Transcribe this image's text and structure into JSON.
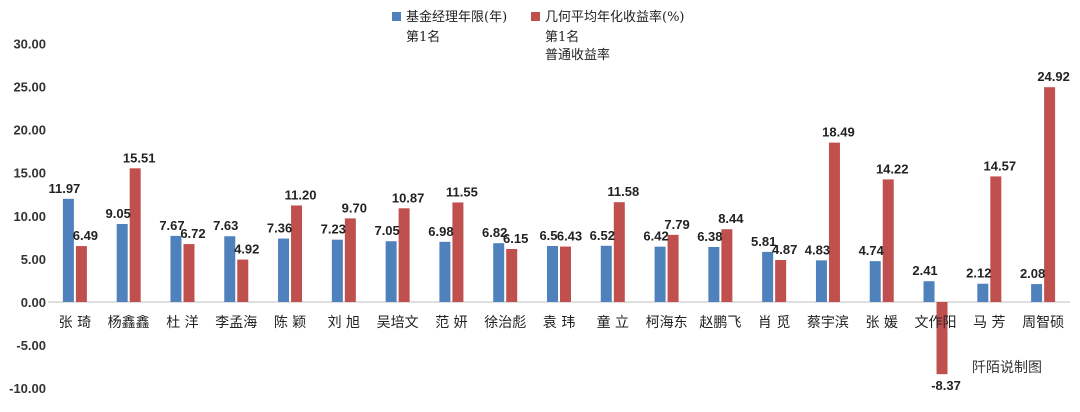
{
  "chart_data": {
    "type": "bar",
    "categories": [
      "张 琦",
      "杨鑫鑫",
      "杜 洋",
      "李孟海",
      "陈 颖",
      "刘 旭",
      "吴培文",
      "范 妍",
      "徐治彪",
      "袁 玮",
      "童 立",
      "柯海东",
      "赵鹏飞",
      "肖 觅",
      "蔡宇滨",
      "张 媛",
      "文作阳",
      "马 芳",
      "周智硕"
    ],
    "series": [
      {
        "name": "基金经理年限(年)",
        "color": "#4F81BD",
        "values": [
          11.97,
          9.05,
          7.67,
          7.63,
          7.36,
          7.23,
          7.05,
          6.98,
          6.82,
          6.5,
          6.52,
          6.42,
          6.38,
          5.81,
          4.83,
          4.74,
          2.41,
          2.12,
          2.08
        ],
        "labels": [
          "11.97",
          "9.05",
          "7.67",
          "7.63",
          "7.36",
          "7.23",
          "7.05",
          "6.98",
          "6.82",
          "6.5",
          "6.52",
          "6.42",
          "6.38",
          "5.81",
          "4.83",
          "4.74",
          "2.41",
          "2.12",
          "2.08"
        ]
      },
      {
        "name": "几何平均年化收益率(%)",
        "color": "#C0504D",
        "values": [
          6.49,
          15.51,
          6.72,
          4.92,
          11.2,
          9.7,
          10.87,
          11.55,
          6.15,
          6.43,
          11.58,
          7.79,
          8.44,
          4.87,
          18.49,
          14.22,
          -8.37,
          14.57,
          24.92
        ],
        "labels": [
          "6.49",
          "15.51",
          "6.72",
          "4.92",
          "11.20",
          "9.70",
          "10.87",
          "11.55",
          "6.15",
          "6.43",
          "11.58",
          "7.79",
          "8.44",
          "4.87",
          "18.49",
          "14.22",
          "-8.37",
          "14.57",
          "24.92"
        ]
      }
    ],
    "ylim": [
      -10,
      30
    ],
    "yticks": [
      "30.00",
      "25.00",
      "20.00",
      "15.00",
      "10.00",
      "5.00",
      "0.00",
      "-5.00",
      "-10.00"
    ],
    "ytick_values": [
      30,
      25,
      20,
      15,
      10,
      5,
      0,
      -5,
      -10
    ],
    "legend_placement": "top-center",
    "annotations": [
      "第1名",
      "第1名",
      "普通收益率"
    ],
    "credit": "阡陌说制图",
    "grid": false
  }
}
